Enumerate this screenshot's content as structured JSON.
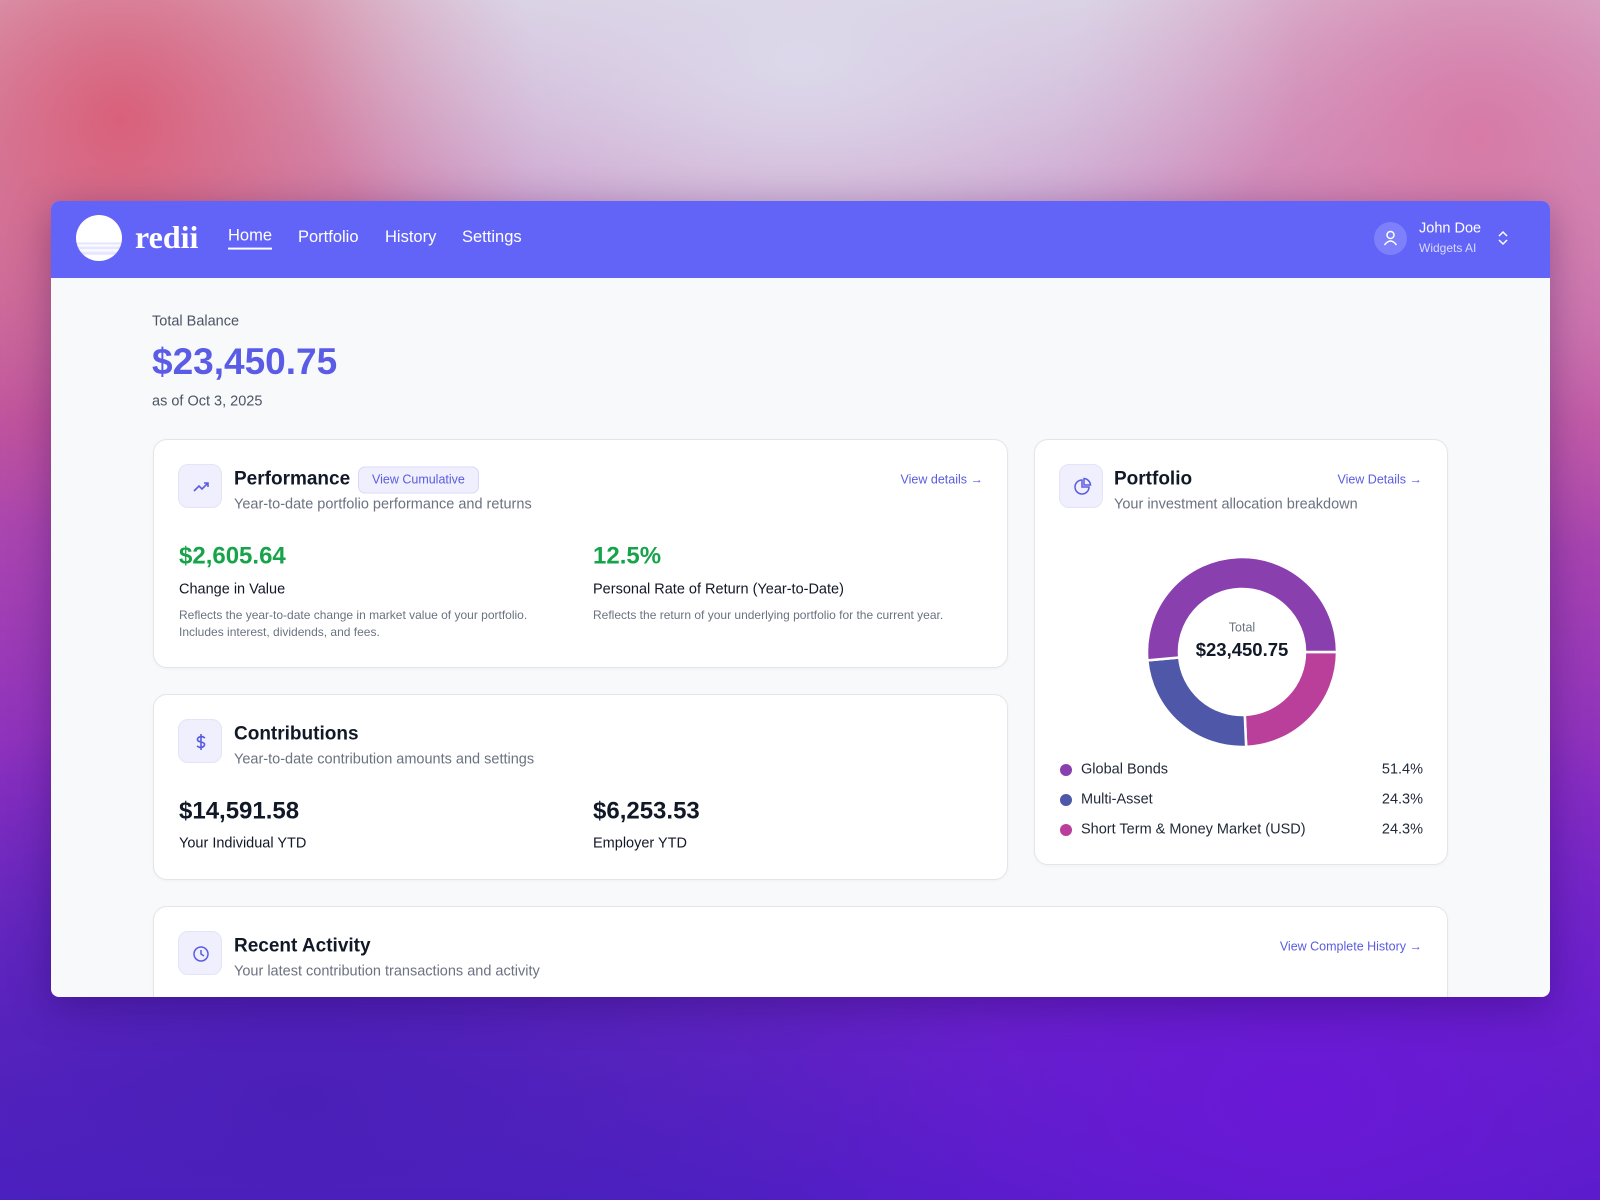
{
  "app": {
    "logo": "redii",
    "nav": [
      "Home",
      "Portfolio",
      "History",
      "Settings"
    ],
    "user": {
      "name": "John Doe",
      "org": "Widgets AI"
    }
  },
  "balance": {
    "label": "Total Balance",
    "amount": "$23,450.75",
    "as_of": "as of Oct 3, 2025"
  },
  "performance": {
    "title": "Performance",
    "badge": "View Cumulative",
    "link": "View details →",
    "subtitle": "Year-to-date portfolio performance and returns",
    "metrics": [
      {
        "value": "$2,605.64",
        "label": "Change in Value",
        "description": "Reflects the year-to-date change in market value of your portfolio. Includes interest, dividends, and fees."
      },
      {
        "value": "12.5%",
        "label": "Personal Rate of Return (Year-to-Date)",
        "description": "Reflects the return of your underlying portfolio for the current year."
      }
    ]
  },
  "contributions": {
    "title": "Contributions",
    "subtitle": "Year-to-date contribution amounts and settings",
    "metrics": [
      {
        "value": "$14,591.58",
        "label": "Your Individual YTD"
      },
      {
        "value": "$6,253.53",
        "label": "Employer YTD"
      }
    ]
  },
  "portfolio": {
    "title": "Portfolio",
    "link": "View Details →",
    "subtitle": "Your investment allocation breakdown",
    "chart": {
      "center_label": "Total",
      "center_value": "$23,450.75",
      "categories": [
        "Global Bonds",
        "Multi-Asset",
        "Short Term & Money Market (USD)"
      ],
      "values": [
        51.4,
        24.3,
        24.3
      ],
      "value_labels": [
        "51.4%",
        "24.3%",
        "24.3%"
      ],
      "colors": [
        "#8a3fae",
        "#4f58a8",
        "#b93f9b"
      ]
    }
  },
  "recent_activity": {
    "title": "Recent Activity",
    "subtitle": "Your latest contribution transactions and activity",
    "link": "View Complete History →"
  }
}
